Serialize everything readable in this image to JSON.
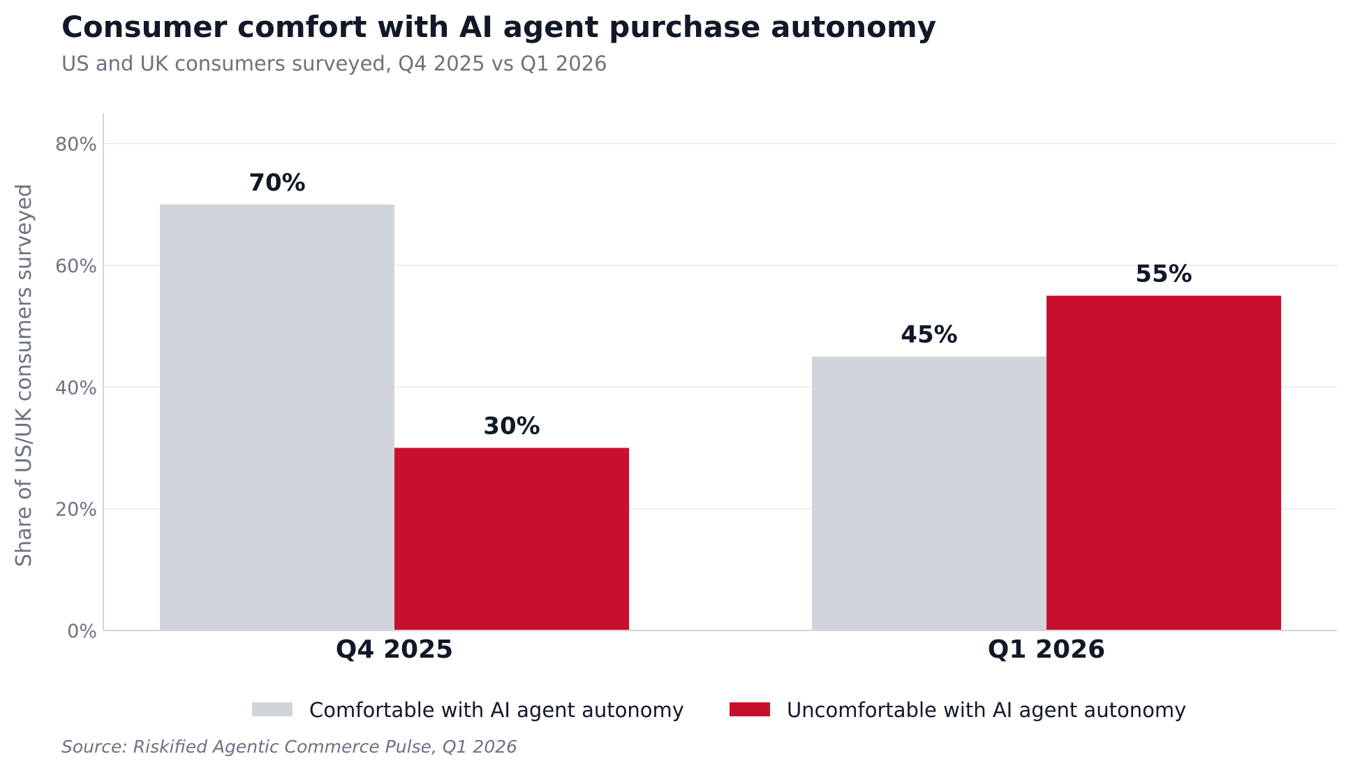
{
  "title": "Consumer comfort with AI agent purchase autonomy",
  "subtitle": "US and UK consumers surveyed, Q4 2025 vs Q1 2026",
  "source": "Source: Riskified Agentic Commerce Pulse, Q1 2026",
  "colors": {
    "comfortable": "#d1d5db",
    "uncomfortable": "#c8102e",
    "text": "#111827",
    "muted": "#6b7280",
    "grid": "#e5e7eb",
    "axis": "#d1d5db"
  },
  "chart_data": {
    "type": "bar",
    "categories": [
      "Q4 2025",
      "Q1 2026"
    ],
    "series": [
      {
        "name": "Comfortable with AI agent autonomy",
        "values": [
          70,
          45
        ]
      },
      {
        "name": "Uncomfortable with AI agent autonomy",
        "values": [
          30,
          55
        ]
      }
    ],
    "data_labels": [
      [
        "70%",
        "45%"
      ],
      [
        "30%",
        "55%"
      ]
    ],
    "ylabel": "Share of US/UK consumers surveyed",
    "ylim": [
      0,
      85
    ],
    "yticks": [
      0,
      20,
      40,
      60,
      80
    ],
    "ytick_labels": [
      "0%",
      "20%",
      "40%",
      "60%",
      "80%"
    ],
    "grid": true,
    "legend": "bottom-center"
  }
}
